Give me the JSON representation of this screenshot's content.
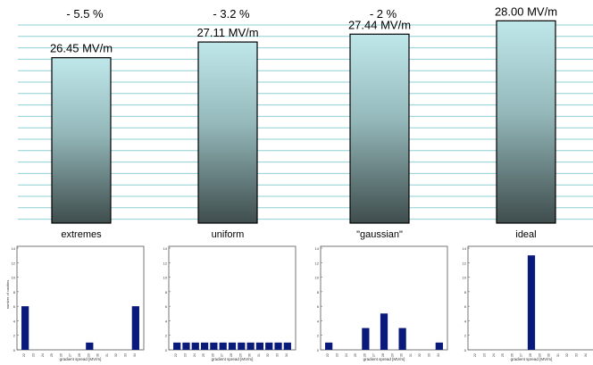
{
  "chart_data": [
    {
      "type": "bar",
      "title": "",
      "xlabel": "",
      "ylabel": "",
      "unit": "MV/m",
      "ylim": [
        19.5,
        28.2
      ],
      "categories": [
        "extremes",
        "uniform",
        "\"gaussian\"",
        "ideal"
      ],
      "values": [
        26.45,
        27.11,
        27.44,
        28.0
      ],
      "value_labels": [
        "26.45 MV/m",
        "27.11 MV/m",
        "27.44 MV/m",
        "28.00 MV/m"
      ],
      "percent_labels": [
        "- 5.5 %",
        "- 3.2 %",
        "- 2 %",
        ""
      ],
      "grid": true,
      "colors": {
        "bar_top": "#bfe7ea",
        "bar_bottom": "#3f4d4d",
        "grid": "#8fd0d4"
      }
    },
    {
      "type": "bar",
      "xlabel": "gradient spread [MV/m]",
      "ylabel": "number of cavities",
      "categories": [
        "22",
        "23",
        "24",
        "25",
        "26",
        "27",
        "28",
        "29",
        "30",
        "31",
        "32",
        "33",
        "34"
      ],
      "values": [
        6,
        0,
        0,
        0,
        0,
        0,
        0,
        1,
        0,
        0,
        0,
        0,
        6
      ],
      "yticks": [
        "0",
        "2",
        "4",
        "6",
        "8",
        "10",
        "12",
        "14"
      ],
      "ylim": [
        0,
        14
      ],
      "color": "#0a1a7a"
    },
    {
      "type": "bar",
      "xlabel": "gradient spread [MV/m]",
      "ylabel": "",
      "categories": [
        "22",
        "23",
        "24",
        "25",
        "26",
        "27",
        "28",
        "29",
        "30",
        "31",
        "32",
        "33",
        "34"
      ],
      "values": [
        1,
        1,
        1,
        1,
        1,
        1,
        1,
        1,
        1,
        1,
        1,
        1,
        1
      ],
      "yticks": [
        "0",
        "2",
        "4",
        "6",
        "8",
        "10",
        "12",
        "14"
      ],
      "ylim": [
        0,
        14
      ],
      "color": "#0a1a7a"
    },
    {
      "type": "bar",
      "xlabel": "gradient spread [MV/m]",
      "ylabel": "",
      "categories": [
        "22",
        "23",
        "24",
        "25",
        "26",
        "27",
        "28",
        "29",
        "30",
        "31",
        "32",
        "33",
        "34"
      ],
      "values": [
        1,
        0,
        0,
        0,
        3,
        0,
        5,
        0,
        3,
        0,
        0,
        0,
        1
      ],
      "yticks": [
        "0",
        "2",
        "4",
        "6",
        "8",
        "10",
        "12",
        "14"
      ],
      "ylim": [
        0,
        14
      ],
      "color": "#0a1a7a"
    },
    {
      "type": "bar",
      "xlabel": "gradient spread [MV/m]",
      "ylabel": "",
      "categories": [
        "22",
        "23",
        "24",
        "25",
        "26",
        "27",
        "28",
        "29",
        "30",
        "31",
        "32",
        "33",
        "34"
      ],
      "values": [
        0,
        0,
        0,
        0,
        0,
        0,
        13,
        0,
        0,
        0,
        0,
        0,
        0
      ],
      "yticks": [
        "0",
        "2",
        "4",
        "6",
        "8",
        "10",
        "12",
        "14"
      ],
      "ylim": [
        0,
        14
      ],
      "color": "#0a1a7a"
    }
  ]
}
